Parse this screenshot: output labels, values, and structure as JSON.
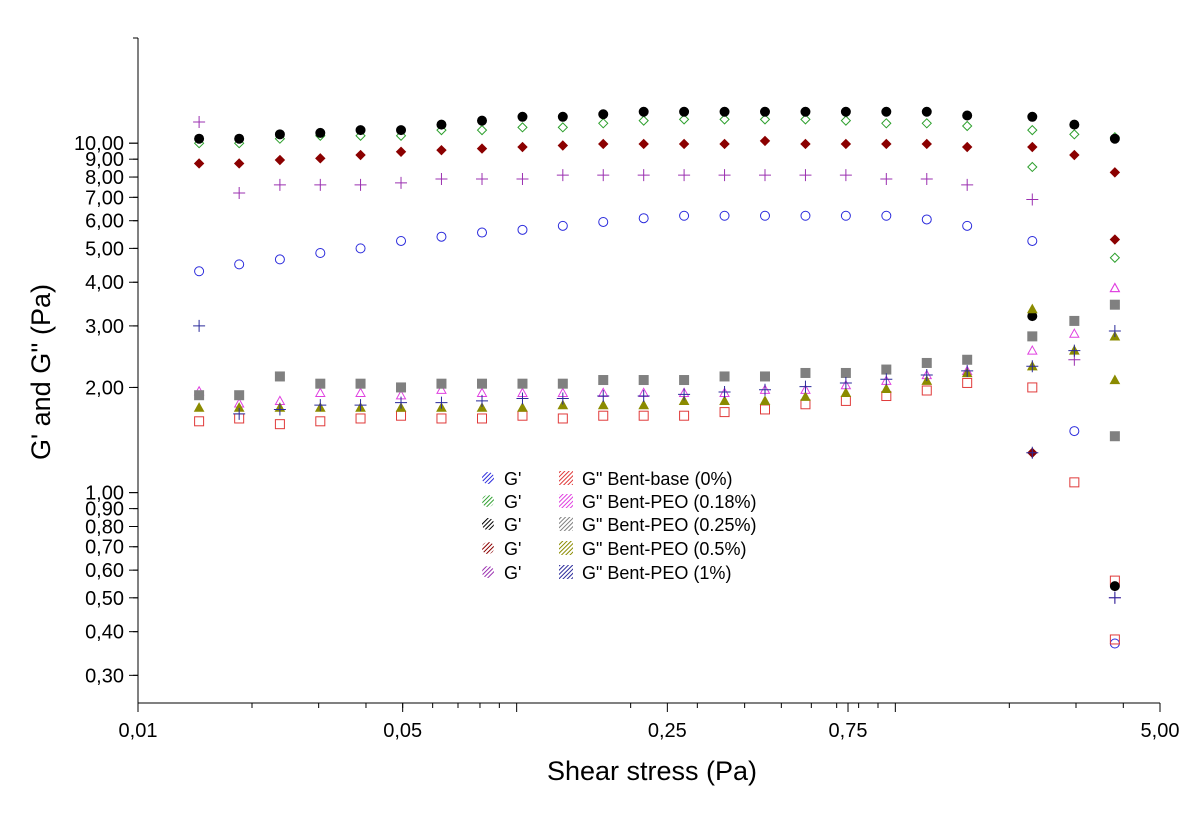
{
  "chart_data": {
    "type": "scatter",
    "xlabel": "Shear stress (Pa)",
    "ylabel": "G' and G'' (Pa)",
    "x_scale": "log",
    "y_scale": "log",
    "xlim": [
      0.01,
      5.0
    ],
    "ylim": [
      0.25,
      20
    ],
    "x_tick_values": [
      0.01,
      0.05,
      0.25,
      0.75,
      5.0
    ],
    "x_tick_labels": [
      "0,01",
      "0,05",
      "0,25",
      "0,75",
      "5,00"
    ],
    "y_tick_values": [
      0.3,
      0.4,
      0.5,
      0.6,
      0.7,
      0.8,
      0.9,
      1.0,
      2.0,
      3.0,
      4.0,
      5.0,
      6.0,
      7.0,
      8.0,
      9.0,
      10.0
    ],
    "y_tick_labels": [
      "0,30",
      "0,40",
      "0,50",
      "0,60",
      "0,70",
      "0,80",
      "0,90",
      "1,00",
      "2,00",
      "3,00",
      "4,00",
      "5,00",
      "6,00",
      "7,00",
      "8,00",
      "9,00",
      "10,00"
    ],
    "grid": false,
    "legend_position": "center",
    "x": [
      0.0145,
      0.0185,
      0.0237,
      0.0303,
      0.0387,
      0.0495,
      0.0633,
      0.081,
      0.1036,
      0.1324,
      0.1693,
      0.2165,
      0.2768,
      0.354,
      0.4527,
      0.579,
      0.7403,
      0.9467,
      1.2107,
      1.548,
      2.3,
      2.97,
      3.8
    ],
    "series": [
      {
        "name": "G'",
        "marker": "circle-open",
        "color": "#2b2bdc",
        "values": [
          4.3,
          4.5,
          4.65,
          4.85,
          5.0,
          5.25,
          5.4,
          5.55,
          5.65,
          5.8,
          5.95,
          6.1,
          6.2,
          6.2,
          6.2,
          6.2,
          6.2,
          6.2,
          6.05,
          5.8,
          5.25,
          1.5,
          0.37
        ]
      },
      {
        "name": "G'",
        "marker": "diamond-open",
        "color": "#2ea02e",
        "values": [
          10.0,
          10.0,
          10.3,
          10.5,
          10.5,
          10.5,
          10.9,
          10.9,
          11.1,
          11.1,
          11.4,
          11.6,
          11.7,
          11.7,
          11.7,
          11.7,
          11.6,
          11.4,
          11.4,
          11.2,
          10.9,
          10.6,
          10.4
        ]
      },
      {
        "name": "G'",
        "marker": "circle-filled",
        "color": "#000000",
        "values": [
          10.3,
          10.3,
          10.6,
          10.7,
          10.9,
          10.9,
          11.3,
          11.6,
          11.9,
          11.9,
          12.1,
          12.3,
          12.3,
          12.3,
          12.3,
          12.3,
          12.3,
          12.3,
          12.3,
          12.0,
          11.9,
          11.3,
          10.3
        ]
      },
      {
        "name": "G'",
        "marker": "diamond-filled",
        "color": "#8b0000",
        "values": [
          8.75,
          8.75,
          8.95,
          9.05,
          9.25,
          9.45,
          9.55,
          9.65,
          9.75,
          9.85,
          9.95,
          9.95,
          9.95,
          9.95,
          10.15,
          9.95,
          9.95,
          9.95,
          9.95,
          9.75,
          9.75,
          9.25,
          8.25
        ]
      },
      {
        "name": "G'",
        "marker": "plus",
        "color": "#9b30b0",
        "values": [
          11.5,
          7.2,
          7.6,
          7.6,
          7.6,
          7.7,
          7.9,
          7.9,
          7.9,
          8.1,
          8.1,
          8.1,
          8.1,
          8.1,
          8.1,
          8.1,
          8.1,
          7.9,
          7.9,
          7.6,
          6.9,
          2.4,
          0.5
        ]
      },
      {
        "name": "G\" Bent-base (0%)",
        "marker": "square-open",
        "color": "#e03a3a",
        "values": [
          1.6,
          1.63,
          1.57,
          1.6,
          1.63,
          1.66,
          1.63,
          1.63,
          1.66,
          1.63,
          1.66,
          1.66,
          1.66,
          1.7,
          1.73,
          1.79,
          1.83,
          1.89,
          1.96,
          2.06,
          2.0,
          1.07,
          0.56
        ]
      },
      {
        "name": "G\" Bent-PEO (0.18%)",
        "marker": "triangle-open",
        "color": "#e040e0",
        "values": [
          1.95,
          1.8,
          1.83,
          1.93,
          1.93,
          1.9,
          1.97,
          1.93,
          1.93,
          1.93,
          1.93,
          1.93,
          1.93,
          1.93,
          1.97,
          1.97,
          2.03,
          2.09,
          2.17,
          2.23,
          2.55,
          2.85,
          3.85
        ]
      },
      {
        "name": "G\" Bent-PEO (0.25%)",
        "marker": "square-filled",
        "color": "#808080",
        "values": [
          1.9,
          1.9,
          2.15,
          2.05,
          2.05,
          2.0,
          2.05,
          2.05,
          2.05,
          2.05,
          2.1,
          2.1,
          2.1,
          2.15,
          2.15,
          2.2,
          2.2,
          2.25,
          2.35,
          2.4,
          2.8,
          3.1,
          3.45
        ]
      },
      {
        "name": "G\" Bent-PEO (0.5%)",
        "marker": "triangle-filled",
        "color": "#8b8b00",
        "values": [
          1.75,
          1.75,
          1.75,
          1.75,
          1.75,
          1.75,
          1.75,
          1.75,
          1.75,
          1.78,
          1.78,
          1.78,
          1.83,
          1.83,
          1.83,
          1.88,
          1.93,
          1.98,
          2.09,
          2.2,
          2.3,
          2.55,
          2.8
        ]
      },
      {
        "name": "G\" Bent-PEO (1%)",
        "marker": "plus",
        "color": "#2a2a9a",
        "values": [
          3.0,
          1.68,
          1.73,
          1.78,
          1.78,
          1.81,
          1.81,
          1.83,
          1.86,
          1.86,
          1.89,
          1.89,
          1.91,
          1.94,
          1.97,
          2.01,
          2.06,
          2.11,
          2.17,
          2.23,
          2.3,
          2.55,
          2.9
        ]
      }
    ],
    "extra_points": [
      {
        "series": "G' 4",
        "x": 2.3,
        "y": 1.3,
        "marker": "diamond-filled",
        "color": "#8b0000"
      },
      {
        "series": "G' 4",
        "x": 3.8,
        "y": 5.3,
        "marker": "diamond-filled",
        "color": "#8b0000"
      },
      {
        "series": "G' 2",
        "x": 2.3,
        "y": 8.55,
        "marker": "diamond-open",
        "color": "#2ea02e"
      },
      {
        "series": "G' 2",
        "x": 3.8,
        "y": 4.7,
        "marker": "diamond-open",
        "color": "#2ea02e"
      },
      {
        "series": "G' 3",
        "x": 2.3,
        "y": 3.2,
        "marker": "circle-filled",
        "color": "#000000"
      },
      {
        "series": "G' 3",
        "x": 3.8,
        "y": 0.54,
        "marker": "circle-filled",
        "color": "#000000"
      },
      {
        "series": "G\" 6",
        "x": 3.8,
        "y": 0.38,
        "marker": "square-open",
        "color": "#e03a3a"
      },
      {
        "series": "G\" 7",
        "x": 3.8,
        "y": 3.85,
        "marker": "triangle-open",
        "color": "#e040e0"
      },
      {
        "series": "G\" 8",
        "x": 3.8,
        "y": 1.45,
        "marker": "square-filled",
        "color": "#808080"
      },
      {
        "series": "G\" 9",
        "x": 3.8,
        "y": 2.1,
        "marker": "triangle-filled",
        "color": "#8b8b00"
      },
      {
        "series": "G\" 9",
        "x": 2.3,
        "y": 3.35,
        "marker": "triangle-filled",
        "color": "#8b8b00"
      },
      {
        "series": "G\" 10",
        "x": 2.3,
        "y": 1.3,
        "marker": "plus",
        "color": "#2a2a9a"
      },
      {
        "series": "G\" 10",
        "x": 3.8,
        "y": 0.5,
        "marker": "plus",
        "color": "#2a2a9a"
      }
    ],
    "legend": [
      {
        "label": "G'",
        "color": "#2b2bdc"
      },
      {
        "label": "G'",
        "color": "#2ea02e"
      },
      {
        "label": "G'",
        "color": "#000000"
      },
      {
        "label": "G'",
        "color": "#8b0000"
      },
      {
        "label": "G'",
        "color": "#9b30b0"
      },
      {
        "label": "G\" Bent-base (0%)",
        "color": "#e03a3a"
      },
      {
        "label": "G\" Bent-PEO  (0.18%)",
        "color": "#e040e0"
      },
      {
        "label": "G\" Bent-PEO (0.25%)",
        "color": "#808080"
      },
      {
        "label": "G\" Bent-PEO  (0.5%)",
        "color": "#8b8b00"
      },
      {
        "label": "G\" Bent-PEO  (1%)",
        "color": "#2a2a9a"
      }
    ]
  }
}
